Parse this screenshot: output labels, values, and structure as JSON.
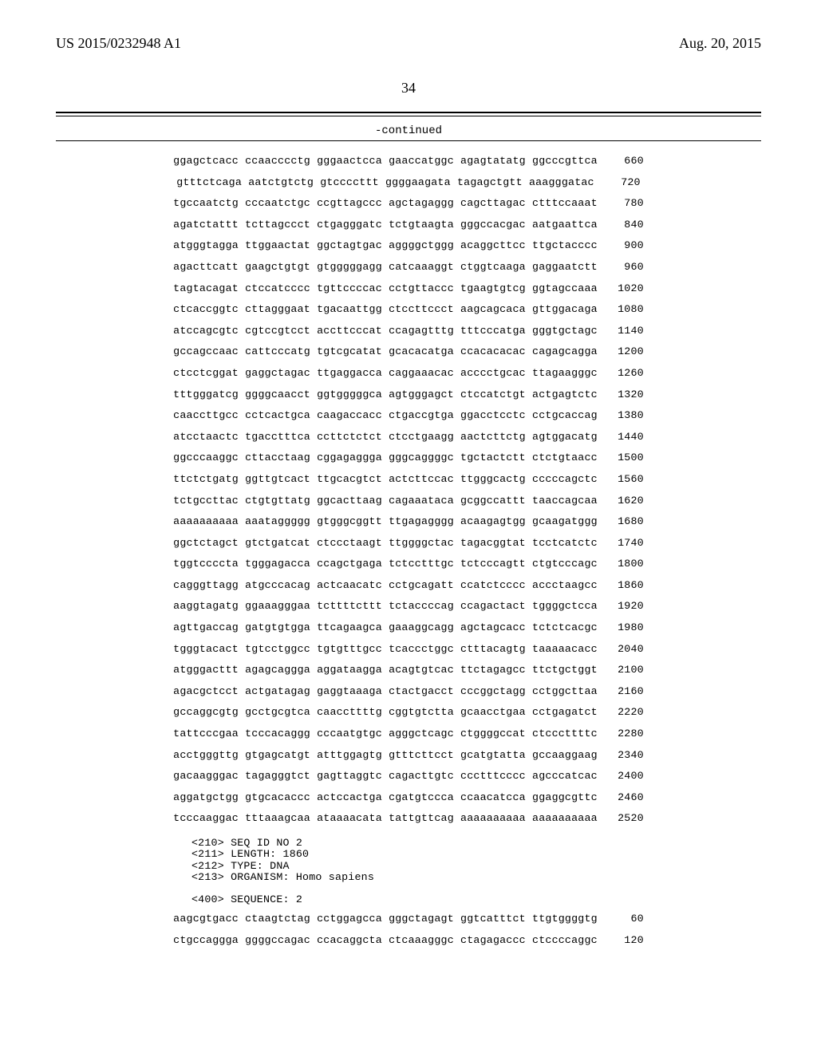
{
  "header": {
    "pubnum": "US 2015/0232948 A1",
    "pubdate": "Aug. 20, 2015",
    "pgnum": "34"
  },
  "contlabel": "-continued",
  "seq_rows": [
    {
      "seq": "ggagctcacc ccaacccctg gggaactcca gaaccatggc agagtatatg ggcccgttca",
      "num": "660"
    },
    {
      "seq": "gtttctcaga aatctgtctg gtccccttt ggggaagata tagagctgtt aaagggatac",
      "num": "720"
    },
    {
      "seq": "tgccaatctg cccaatctgc ccgttagccc agctagaggg cagcttagac ctttccaaat",
      "num": "780"
    },
    {
      "seq": "agatctattt tcttagccct ctgagggatc tctgtaagta gggccacgac aatgaattca",
      "num": "840"
    },
    {
      "seq": "atgggtagga ttggaactat ggctagtgac aggggctggg acaggcttcc ttgctacccc",
      "num": "900"
    },
    {
      "seq": "agacttcatt gaagctgtgt gtgggggagg catcaaaggt ctggtcaaga gaggaatctt",
      "num": "960"
    },
    {
      "seq": "tagtacagat ctccatcccc tgttccccac cctgttaccc tgaagtgtcg ggtagccaaa",
      "num": "1020"
    },
    {
      "seq": "ctcaccggtc cttagggaat tgacaattgg ctccttccct aagcagcaca gttggacaga",
      "num": "1080"
    },
    {
      "seq": "atccagcgtc cgtccgtcct accttcccat ccagagtttg tttcccatga gggtgctagc",
      "num": "1140"
    },
    {
      "seq": "gccagccaac cattcccatg tgtcgcatat gcacacatga ccacacacac cagagcagga",
      "num": "1200"
    },
    {
      "seq": "ctcctcggat gaggctagac ttgaggacca caggaaacac acccctgcac ttagaagggc",
      "num": "1260"
    },
    {
      "seq": "tttgggatcg ggggcaacct ggtgggggca agtgggagct ctccatctgt actgagtctc",
      "num": "1320"
    },
    {
      "seq": "caaccttgcc cctcactgca caagaccacc ctgaccgtga ggacctcctc cctgcaccag",
      "num": "1380"
    },
    {
      "seq": "atcctaactc tgacctttca ccttctctct ctcctgaagg aactcttctg agtggacatg",
      "num": "1440"
    },
    {
      "seq": "ggcccaaggc cttacctaag cggagaggga gggcaggggc tgctactctt ctctgtaacc",
      "num": "1500"
    },
    {
      "seq": "ttctctgatg ggttgtcact ttgcacgtct actcttccac ttgggcactg cccccagctc",
      "num": "1560"
    },
    {
      "seq": "tctgccttac ctgtgttatg ggcacttaag cagaaataca gcggccattt taaccagcaa",
      "num": "1620"
    },
    {
      "seq": "aaaaaaaaaa aaataggggg gtgggcggtt ttgagagggg acaagagtgg gcaagatggg",
      "num": "1680"
    },
    {
      "seq": "ggctctagct gtctgatcat ctccctaagt ttggggctac tagacggtat tcctcatctc",
      "num": "1740"
    },
    {
      "seq": "tggtccccta tgggagacca ccagctgaga tctcctttgc tctcccagtt ctgtcccagc",
      "num": "1800"
    },
    {
      "seq": "cagggttagg atgcccacag actcaacatc cctgcagatt ccatctcccc accctaagcc",
      "num": "1860"
    },
    {
      "seq": "aaggtagatg ggaaagggaa tcttttcttt tctaccccag ccagactact tggggctcca",
      "num": "1920"
    },
    {
      "seq": "agttgaccag gatgtgtgga ttcagaagca gaaaggcagg agctagcacc tctctcacgc",
      "num": "1980"
    },
    {
      "seq": "tgggtacact tgtcctggcc tgtgtttgcc tcaccctggc ctttacagtg taaaaacacc",
      "num": "2040"
    },
    {
      "seq": "atgggacttt agagcaggga aggataagga acagtgtcac ttctagagcc ttctgctggt",
      "num": "2100"
    },
    {
      "seq": "agacgctcct actgatagag gaggtaaaga ctactgacct cccggctagg cctggcttaa",
      "num": "2160"
    },
    {
      "seq": "gccaggcgtg gcctgcgtca caaccttttg cggtgtctta gcaacctgaa cctgagatct",
      "num": "2220"
    },
    {
      "seq": "tattcccgaa tcccacaggg cccaatgtgc agggctcagc ctggggccat ctcccttttc",
      "num": "2280"
    },
    {
      "seq": "acctgggttg gtgagcatgt atttggagtg gtttcttcct gcatgtatta gccaaggaag",
      "num": "2340"
    },
    {
      "seq": "gacaagggac tagagggtct gagttaggtc cagacttgtc ccctttcccc agcccatcac",
      "num": "2400"
    },
    {
      "seq": "aggatgctgg gtgcacaccc actccactga cgatgtccca ccaacatcca ggaggcgttc",
      "num": "2460"
    },
    {
      "seq": "tcccaaggac tttaaagcaa ataaaacata tattgttcag aaaaaaaaaa aaaaaaaaaa",
      "num": "2520"
    }
  ],
  "meta_block": [
    "<210> SEQ ID NO 2",
    "<211> LENGTH: 1860",
    "<212> TYPE: DNA",
    "<213> ORGANISM: Homo sapiens"
  ],
  "seq_header": "<400> SEQUENCE: 2",
  "seq2_rows": [
    {
      "seq": "aagcgtgacc ctaagtctag cctggagcca gggctagagt ggtcatttct ttgtggggtg",
      "num": "60"
    },
    {
      "seq": "ctgccaggga ggggccagac ccacaggcta ctcaaagggc ctagagaccc ctccccaggc",
      "num": "120"
    }
  ]
}
